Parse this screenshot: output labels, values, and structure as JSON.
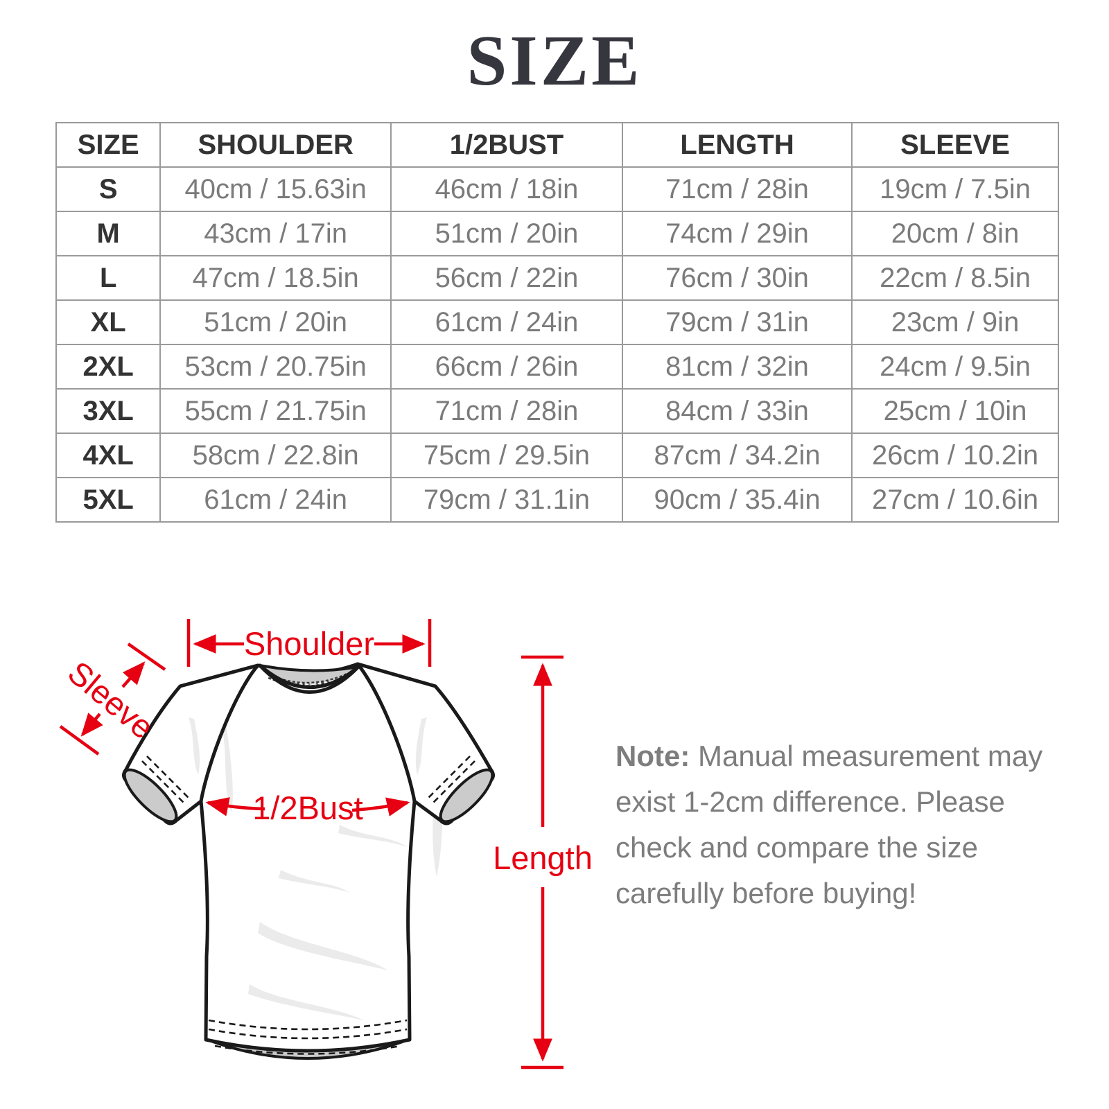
{
  "page_title": "SIZE",
  "table": {
    "headers": [
      "SIZE",
      "SHOULDER",
      "1/2BUST",
      "LENGTH",
      "SLEEVE"
    ],
    "rows": [
      [
        "S",
        "40cm / 15.63in",
        "46cm / 18in",
        "71cm / 28in",
        "19cm / 7.5in"
      ],
      [
        "M",
        "43cm / 17in",
        "51cm / 20in",
        "74cm / 29in",
        "20cm / 8in"
      ],
      [
        "L",
        "47cm / 18.5in",
        "56cm / 22in",
        "76cm / 30in",
        "22cm / 8.5in"
      ],
      [
        "XL",
        "51cm / 20in",
        "61cm / 24in",
        "79cm / 31in",
        "23cm / 9in"
      ],
      [
        "2XL",
        "53cm / 20.75in",
        "66cm / 26in",
        "81cm / 32in",
        "24cm / 9.5in"
      ],
      [
        "3XL",
        "55cm / 21.75in",
        "71cm / 28in",
        "84cm / 33in",
        "25cm / 10in"
      ],
      [
        "4XL",
        "58cm / 22.8in",
        "75cm / 29.5in",
        "87cm / 34.2in",
        "26cm / 10.2in"
      ],
      [
        "5XL",
        "61cm / 24in",
        "79cm / 31.1in",
        "90cm / 35.4in",
        "27cm / 10.6in"
      ]
    ]
  },
  "diagram": {
    "shoulder_label": "Shoulder",
    "sleeve_label": "Sleeve",
    "bust_label": "1/2Bust",
    "length_label": "Length"
  },
  "note": {
    "label": "Note:",
    "text": " Manual measurement may exist 1-2cm difference. Please check and compare the size carefully before buying!"
  },
  "colors": {
    "accent": "#e60012",
    "table_border": "#9a9a9a",
    "header_text": "#333333",
    "data_text": "#7b7b7b",
    "note_text": "#7d7d7d",
    "title_text": "#36363e"
  }
}
